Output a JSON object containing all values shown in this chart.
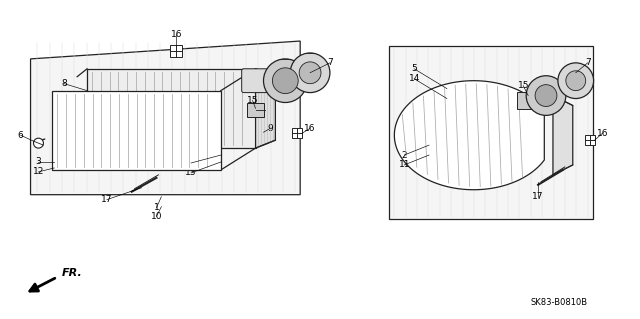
{
  "bg_color": "#ffffff",
  "diagram_code": "SK83-B0810B",
  "part_label_size": 6.5,
  "line_color": "#222222",
  "gray_light": "#d8d8d8",
  "gray_mid": "#b0b0b0",
  "gray_dark": "#888888"
}
